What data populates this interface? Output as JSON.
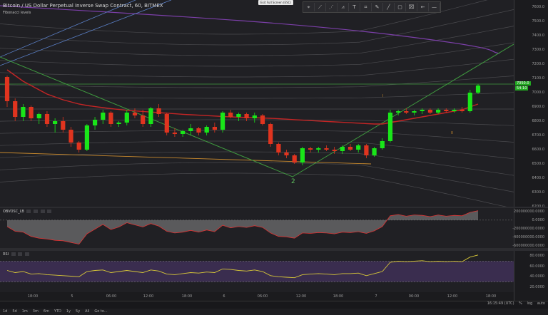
{
  "header": {
    "title": "Bitcoin / US Dollar Perpetual Inverse Swap Contract, 60, BITMEX",
    "fib_label": "Fibonacci levels",
    "exit_fullscreen": "Exit Full Screen (ESC)"
  },
  "toolbar": {
    "tools": [
      {
        "icon": "cursor-icon",
        "glyph": "⌖"
      },
      {
        "icon": "trend-line-icon",
        "glyph": "⟋"
      },
      {
        "icon": "pitchfork-icon",
        "glyph": "⋰"
      },
      {
        "icon": "pattern-icon",
        "glyph": "⩘"
      },
      {
        "icon": "text-icon",
        "glyph": "T"
      },
      {
        "icon": "measure-icon",
        "glyph": "⌗"
      },
      {
        "icon": "brush-icon",
        "glyph": "✎"
      },
      {
        "icon": "line-icon",
        "glyph": "╱"
      },
      {
        "icon": "rectangle-icon",
        "glyph": "▢"
      },
      {
        "icon": "marker-icon",
        "glyph": "⌧"
      },
      {
        "icon": "arrow-left-icon",
        "glyph": "←"
      },
      {
        "icon": "horizontal-line-icon",
        "glyph": "—"
      }
    ]
  },
  "price_axis": {
    "labels": [
      "7600.0",
      "7500.0",
      "7400.0",
      "7300.0",
      "7200.0",
      "7100.0",
      "7000.0",
      "6900.0",
      "6800.0",
      "6700.0",
      "6600.0",
      "6500.0",
      "6400.0",
      "6300.0",
      "6200.0"
    ],
    "current_price": "7050.0",
    "current_price2": "54:10"
  },
  "obv": {
    "title": "OBVOSC_LB",
    "labels": [
      "200000000.0000",
      "0.0000",
      "-200000000.0000",
      "-400000000.0000",
      "-600000000.0000"
    ]
  },
  "rsi": {
    "title": "RSI",
    "labels": [
      "80.0000",
      "60.0000",
      "40.0000",
      "20.0000"
    ]
  },
  "time_axis": {
    "labels": [
      "18:00",
      "5",
      "06:00",
      "12:00",
      "18:00",
      "6",
      "06:00",
      "12:00",
      "18:00",
      "7",
      "06:00",
      "12:00",
      "18:00"
    ]
  },
  "wave_labels": {
    "main": "2",
    "i": "I",
    "ii": "II"
  },
  "bottom_bar": {
    "ranges": [
      "1d",
      "5d",
      "1m",
      "3m",
      "6m",
      "YTD",
      "1y",
      "5y",
      "All",
      "Go to..."
    ],
    "clock": "16:15:49 (UTC)",
    "options": [
      "%",
      "log",
      "auto"
    ]
  },
  "chart_data": {
    "type": "candlestick",
    "candles": [
      [
        7110,
        7120,
        6900,
        6940
      ],
      [
        6940,
        6960,
        6800,
        6830
      ],
      [
        6830,
        6920,
        6800,
        6900
      ],
      [
        6900,
        6910,
        6800,
        6820
      ],
      [
        6820,
        6860,
        6780,
        6850
      ],
      [
        6850,
        6870,
        6760,
        6780
      ],
      [
        6780,
        6820,
        6720,
        6800
      ],
      [
        6800,
        6830,
        6720,
        6740
      ],
      [
        6740,
        6760,
        6620,
        6650
      ],
      [
        6650,
        6660,
        6580,
        6600
      ],
      [
        6600,
        6780,
        6590,
        6770
      ],
      [
        6770,
        6830,
        6740,
        6810
      ],
      [
        6810,
        6880,
        6780,
        6860
      ],
      [
        6860,
        6870,
        6760,
        6780
      ],
      [
        6780,
        6800,
        6760,
        6790
      ],
      [
        6790,
        6880,
        6770,
        6860
      ],
      [
        6860,
        6890,
        6820,
        6840
      ],
      [
        6840,
        6880,
        6760,
        6780
      ],
      [
        6780,
        6900,
        6760,
        6890
      ],
      [
        6890,
        6920,
        6830,
        6850
      ],
      [
        6850,
        6860,
        6700,
        6720
      ],
      [
        6720,
        6750,
        6690,
        6710
      ],
      [
        6710,
        6740,
        6690,
        6730
      ],
      [
        6730,
        6780,
        6700,
        6750
      ],
      [
        6750,
        6760,
        6700,
        6720
      ],
      [
        6720,
        6770,
        6700,
        6760
      ],
      [
        6760,
        6790,
        6720,
        6740
      ],
      [
        6740,
        6870,
        6720,
        6860
      ],
      [
        6860,
        6880,
        6820,
        6830
      ],
      [
        6830,
        6860,
        6800,
        6850
      ],
      [
        6850,
        6860,
        6800,
        6820
      ],
      [
        6820,
        6860,
        6790,
        6840
      ],
      [
        6840,
        6850,
        6770,
        6780
      ],
      [
        6780,
        6790,
        6620,
        6640
      ],
      [
        6640,
        6650,
        6560,
        6580
      ],
      [
        6580,
        6600,
        6540,
        6560
      ],
      [
        6560,
        6570,
        6500,
        6510
      ],
      [
        6510,
        6620,
        6490,
        6610
      ],
      [
        6610,
        6620,
        6580,
        6600
      ],
      [
        6600,
        6620,
        6580,
        6610
      ],
      [
        6610,
        6630,
        6590,
        6600
      ],
      [
        6600,
        6620,
        6570,
        6590
      ],
      [
        6590,
        6630,
        6570,
        6620
      ],
      [
        6620,
        6640,
        6590,
        6600
      ],
      [
        6600,
        6640,
        6580,
        6630
      ],
      [
        6630,
        6640,
        6540,
        6560
      ],
      [
        6560,
        6620,
        6550,
        6610
      ],
      [
        6610,
        6680,
        6600,
        6660
      ],
      [
        6660,
        6880,
        6650,
        6860
      ],
      [
        6860,
        6880,
        6840,
        6870
      ],
      [
        6870,
        6890,
        6850,
        6860
      ],
      [
        6860,
        6880,
        6840,
        6870
      ],
      [
        6870,
        6890,
        6850,
        6880
      ],
      [
        6880,
        6890,
        6850,
        6860
      ],
      [
        6860,
        6890,
        6850,
        6880
      ],
      [
        6880,
        6890,
        6860,
        6870
      ],
      [
        6870,
        6890,
        6860,
        6880
      ],
      [
        6880,
        6900,
        6860,
        6870
      ],
      [
        6870,
        7020,
        6860,
        7000
      ],
      [
        7000,
        7060,
        6990,
        7050
      ]
    ],
    "ema": [
      7160,
      7120,
      7080,
      7050,
      7020,
      6990,
      6970,
      6950,
      6935,
      6920,
      6910,
      6902,
      6895,
      6888,
      6882,
      6876,
      6872,
      6868,
      6864,
      6860,
      6856,
      6852,
      6848,
      6845,
      6842,
      6839,
      6836,
      6833,
      6830,
      6828,
      6826,
      6824,
      6822,
      6820,
      6817,
      6814,
      6810,
      6807,
      6804,
      6801,
      6798,
      6795,
      6792,
      6789,
      6786,
      6783,
      6780,
      6780,
      6790,
      6800,
      6810,
      6820,
      6830,
      6840,
      6850,
      6860,
      6870,
      6880,
      6900,
      6920
    ],
    "rsi": [
      52,
      48,
      50,
      45,
      46,
      44,
      43,
      42,
      41,
      40,
      50,
      52,
      53,
      48,
      50,
      52,
      50,
      48,
      53,
      51,
      45,
      44,
      46,
      48,
      47,
      49,
      48,
      55,
      54,
      52,
      51,
      53,
      50,
      42,
      40,
      39,
      38,
      44,
      45,
      46,
      45,
      44,
      46,
      46,
      47,
      42,
      46,
      50,
      68,
      70,
      69,
      70,
      71,
      69,
      70,
      69,
      70,
      69,
      78,
      82
    ],
    "obv": [
      -150,
      -260,
      -280,
      -380,
      -420,
      -440,
      -470,
      -480,
      -520,
      -560,
      -320,
      -210,
      -100,
      -220,
      -160,
      -60,
      -110,
      -160,
      -80,
      -140,
      -260,
      -300,
      -280,
      -240,
      -280,
      -230,
      -270,
      -120,
      -180,
      -150,
      -170,
      -130,
      -170,
      -300,
      -380,
      -390,
      -420,
      -300,
      -310,
      -290,
      -300,
      -320,
      -280,
      -290,
      -270,
      -310,
      -250,
      -150,
      100,
      130,
      90,
      120,
      110,
      80,
      120,
      90,
      110,
      100,
      180,
      220
    ],
    "price_range": [
      6200,
      7650
    ]
  }
}
